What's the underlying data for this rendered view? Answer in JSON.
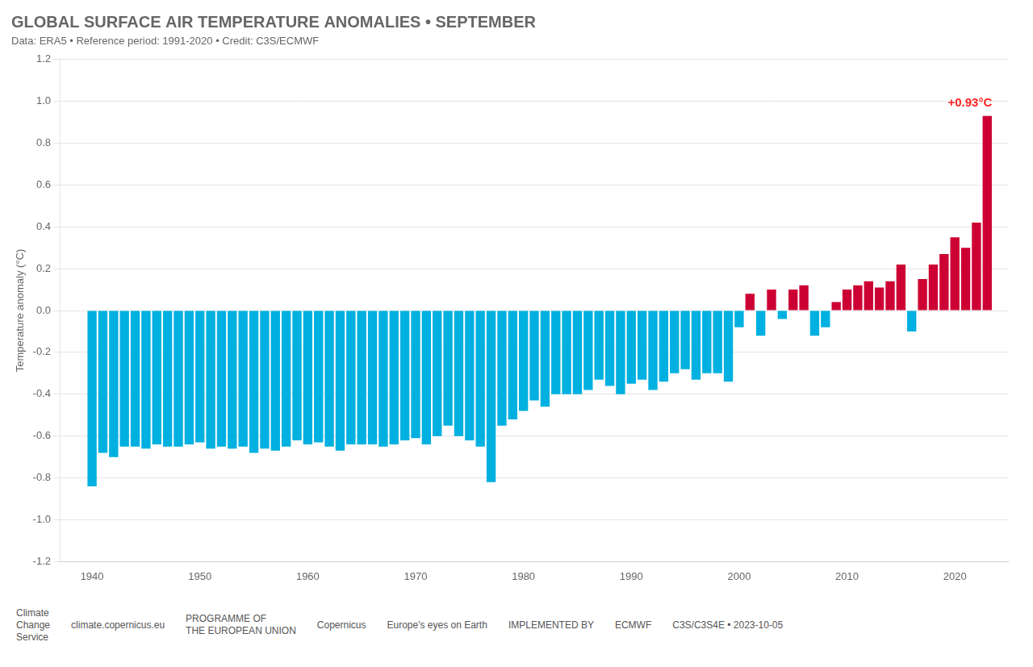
{
  "chart_data": {
    "type": "bar",
    "title": "GLOBAL SURFACE AIR TEMPERATURE ANOMALIES • SEPTEMBER",
    "subtitle": "Data: ERA5 • Reference period: 1991-2020 • Credit: C3S/ECMWF",
    "y_label": "Temperature anomaly (°C)",
    "x": [
      1940,
      1941,
      1942,
      1943,
      1944,
      1945,
      1946,
      1947,
      1948,
      1949,
      1950,
      1951,
      1952,
      1953,
      1954,
      1955,
      1956,
      1957,
      1958,
      1959,
      1960,
      1961,
      1962,
      1963,
      1964,
      1965,
      1966,
      1967,
      1968,
      1969,
      1970,
      1971,
      1972,
      1973,
      1974,
      1975,
      1976,
      1977,
      1978,
      1979,
      1980,
      1981,
      1982,
      1983,
      1984,
      1985,
      1986,
      1987,
      1988,
      1989,
      1990,
      1991,
      1992,
      1993,
      1994,
      1995,
      1996,
      1997,
      1998,
      1999,
      2000,
      2001,
      2002,
      2003,
      2004,
      2005,
      2006,
      2007,
      2008,
      2009,
      2010,
      2011,
      2012,
      2013,
      2014,
      2015,
      2016,
      2017,
      2018,
      2019,
      2020,
      2021,
      2022,
      2023
    ],
    "values": [
      -0.84,
      -0.68,
      -0.7,
      -0.65,
      -0.65,
      -0.66,
      -0.64,
      -0.65,
      -0.65,
      -0.64,
      -0.63,
      -0.66,
      -0.65,
      -0.66,
      -0.65,
      -0.68,
      -0.66,
      -0.67,
      -0.65,
      -0.62,
      -0.64,
      -0.63,
      -0.65,
      -0.67,
      -0.64,
      -0.64,
      -0.64,
      -0.65,
      -0.64,
      -0.62,
      -0.61,
      -0.64,
      -0.6,
      -0.55,
      -0.6,
      -0.62,
      -0.65,
      -0.82,
      -0.55,
      -0.52,
      -0.48,
      -0.43,
      -0.46,
      -0.4,
      -0.4,
      -0.4,
      -0.38,
      -0.33,
      -0.36,
      -0.4,
      -0.35,
      -0.33,
      -0.38,
      -0.34,
      -0.3,
      -0.28,
      -0.33,
      -0.3,
      -0.3,
      -0.34,
      -0.08,
      0.08,
      -0.12,
      0.1,
      -0.04,
      0.1,
      0.12,
      -0.12,
      -0.08,
      0.04,
      0.1,
      0.12,
      0.14,
      0.11,
      0.14,
      0.22,
      -0.1,
      0.15,
      0.22,
      0.27,
      0.35,
      0.3,
      0.42,
      0.93
    ],
    "colors": [
      "#00b0e0",
      "#00b0e0",
      "#00b0e0",
      "#00b0e0",
      "#00b0e0",
      "#00b0e0",
      "#00b0e0",
      "#00b0e0",
      "#00b0e0",
      "#00b0e0",
      "#00b0e0",
      "#00b0e0",
      "#00b0e0",
      "#00b0e0",
      "#00b0e0",
      "#00b0e0",
      "#00b0e0",
      "#00b0e0",
      "#00b0e0",
      "#00b0e0",
      "#00b0e0",
      "#00b0e0",
      "#00b0e0",
      "#00b0e0",
      "#00b0e0",
      "#00b0e0",
      "#00b0e0",
      "#00b0e0",
      "#00b0e0",
      "#00b0e0",
      "#00b0e0",
      "#00b0e0",
      "#00b0e0",
      "#00b0e0",
      "#00b0e0",
      "#00b0e0",
      "#00b0e0",
      "#00b0e0",
      "#00b0e0",
      "#00b0e0",
      "#00b0e0",
      "#00b0e0",
      "#00b0e0",
      "#00b0e0",
      "#00b0e0",
      "#00b0e0",
      "#00b0e0",
      "#00b0e0",
      "#00b0e0",
      "#00b0e0",
      "#00b0e0",
      "#00b0e0",
      "#00b0e0",
      "#00b0e0",
      "#00b0e0",
      "#00b0e0",
      "#00b0e0",
      "#00b0e0",
      "#00b0e0",
      "#00b0e0",
      "#00b0e0",
      "#cc0033",
      "#00b0e0",
      "#cc0033",
      "#00b0e0",
      "#cc0033",
      "#cc0033",
      "#00b0e0",
      "#00b0e0",
      "#cc0033",
      "#cc0033",
      "#cc0033",
      "#cc0033",
      "#cc0033",
      "#cc0033",
      "#cc0033",
      "#00b0e0",
      "#cc0033",
      "#cc0033",
      "#cc0033",
      "#cc0033",
      "#cc0033",
      "#cc0033",
      "#cc0033"
    ],
    "xlim": [
      1937,
      2025
    ],
    "xticks": [
      1940,
      1950,
      1960,
      1970,
      1980,
      1990,
      2000,
      2010,
      2020
    ],
    "ylim": [
      -1.2,
      1.2
    ],
    "yticks": [
      -1.2,
      {
        "value": -1.0,
        "label": "-1.0"
      },
      -0.8,
      -0.6,
      -0.4,
      -0.2,
      {
        "value": 0.0,
        "label": "0.0"
      },
      0.2,
      0.4,
      0.6,
      0.8,
      {
        "value": 1.0,
        "label": "1.0"
      },
      1.2
    ],
    "grid": true,
    "annotations": [
      {
        "text": "+0.93°C",
        "x": 2023,
        "y": 0.93,
        "color": "#ff2222"
      },
      {
        "text": "Climate\nChange\nService"
      },
      {
        "text": "climate.copernicus.eu"
      },
      {
        "text": "PROGRAMME OF\nTHE EUROPEAN UNION"
      },
      {
        "text": "Copernicus"
      },
      {
        "text": "Europe's eyes on Earth"
      },
      {
        "text": "IMPLEMENTED BY"
      },
      {
        "text": "ECMWF"
      },
      {
        "text": "C3S/C3S4E • 2023-10-05"
      }
    ]
  }
}
